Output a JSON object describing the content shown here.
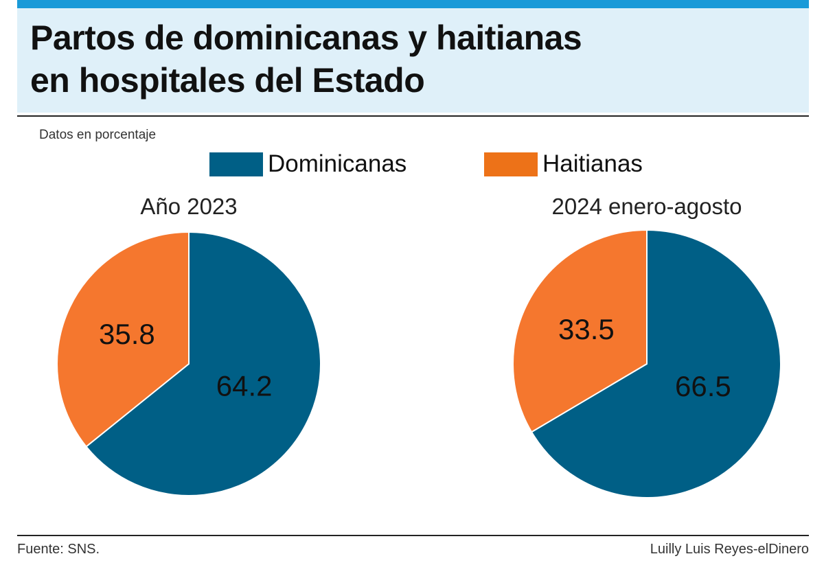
{
  "header": {
    "title_line1": "Partos de dominicanas y haitianas",
    "title_line2": "en hospitales del Estado"
  },
  "subtitle": "Datos en porcentaje",
  "legend": [
    {
      "label": "Dominicanas",
      "color": "#005f86"
    },
    {
      "label": "Haitianas",
      "color": "#ed7218"
    }
  ],
  "chart_data": [
    {
      "type": "pie",
      "title": "Año 2023",
      "slices": [
        {
          "label": "Dominicanas",
          "value": 64.2,
          "color": "#005f86"
        },
        {
          "label": "Haitianas",
          "value": 35.8,
          "color": "#f5772e"
        }
      ]
    },
    {
      "type": "pie",
      "title": "2024 enero-agosto",
      "slices": [
        {
          "label": "Dominicanas",
          "value": 66.5,
          "color": "#005f86"
        },
        {
          "label": "Haitianas",
          "value": 33.5,
          "color": "#f5772e"
        }
      ]
    }
  ],
  "footer": {
    "source": "Fuente: SNS.",
    "credit": "Luilly Luis Reyes-elDinero"
  }
}
